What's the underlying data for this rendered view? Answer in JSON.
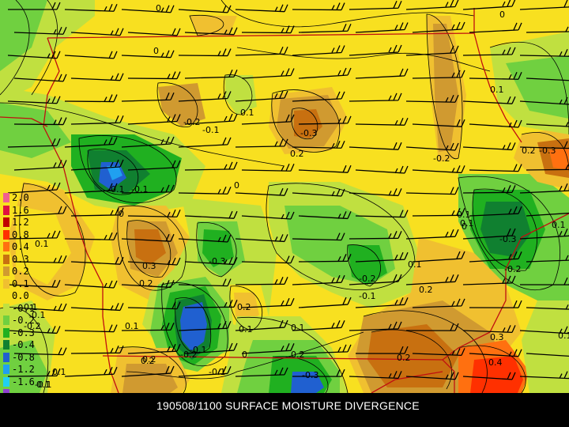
{
  "footer": {
    "title": "190508/1100 SURFACE MOISTURE DIVERGENCE"
  },
  "legend": {
    "entries": [
      {
        "label": "2.0",
        "color": "#f06090"
      },
      {
        "label": "1.6",
        "color": "#e01040"
      },
      {
        "label": "1.2",
        "color": "#c00000"
      },
      {
        "label": "0.8",
        "color": "#ff3000"
      },
      {
        "label": "0.4",
        "color": "#ff7010"
      },
      {
        "label": "0.3",
        "color": "#c87010"
      },
      {
        "label": "0.2",
        "color": "#d09a30"
      },
      {
        "label": "0.1",
        "color": "#f0c030"
      },
      {
        "label": "0.0",
        "color": "#f8e020"
      },
      {
        "label": "-0.1",
        "color": "#c0e040"
      },
      {
        "label": "-0.2",
        "color": "#70d040"
      },
      {
        "label": "-0.3",
        "color": "#20b020"
      },
      {
        "label": "-0.4",
        "color": "#108030"
      },
      {
        "label": "-0.8",
        "color": "#2060d0"
      },
      {
        "label": "-1.2",
        "color": "#20a0f0"
      },
      {
        "label": "-1.6",
        "color": "#20d0f0"
      },
      {
        "label": "",
        "color": "#9040d0"
      }
    ]
  },
  "contour_labels": [
    "0",
    "0",
    "0",
    "-0.2",
    "-0.1",
    "0.1",
    "-0.3",
    "0.2",
    "-0.2",
    "0.2",
    "-0.3",
    "-0.1",
    "-0.1",
    "0",
    "0",
    "0.3",
    "0.1",
    "0.2",
    "-0.3",
    "-0.3",
    "-0.2",
    "-0.1",
    "0.1",
    "0.2",
    "0.1",
    "0.1",
    "-0.2",
    "0.2",
    "-0.1",
    "0.1",
    "0.2",
    "0.3",
    "0.4",
    "0.1",
    "0.1",
    "0.1",
    "0.2",
    "-0.2",
    "0.2",
    "-0.1",
    "-0.1",
    "0.1",
    "0.1",
    "0",
    "-0.3",
    "0.2",
    "0.1",
    "0",
    "-0.1",
    "-0.2",
    "0.1",
    "0.1"
  ],
  "colors": {
    "state_borders": "#c01010",
    "wind_barbs": "#000000",
    "contours": "#000000",
    "background": "#000000"
  }
}
